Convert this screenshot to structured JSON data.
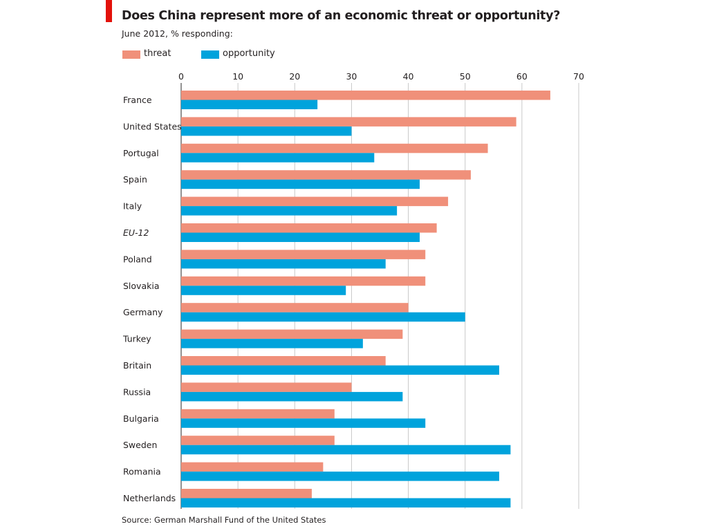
{
  "chart_data": {
    "type": "bar",
    "orientation": "horizontal",
    "title": "Does China represent more of an economic threat or opportunity?",
    "subtitle": "June 2012, % responding:",
    "source": "Source: German Marshall Fund of the United States",
    "categories": [
      "France",
      "United States",
      "Portugal",
      "Spain",
      "Italy",
      "EU-12",
      "Poland",
      "Slovakia",
      "Germany",
      "Turkey",
      "Britain",
      "Russia",
      "Bulgaria",
      "Sweden",
      "Romania",
      "Netherlands"
    ],
    "italic_categories": [
      "EU-12"
    ],
    "series": [
      {
        "name": "threat",
        "color": "#f0907a",
        "values": [
          65,
          59,
          54,
          51,
          47,
          45,
          43,
          43,
          40,
          39,
          36,
          30,
          27,
          27,
          25,
          23
        ]
      },
      {
        "name": "opportunity",
        "color": "#00a3dc",
        "values": [
          24,
          30,
          34,
          42,
          38,
          42,
          36,
          29,
          50,
          32,
          56,
          39,
          43,
          58,
          56,
          58
        ]
      }
    ],
    "xlim": [
      0,
      70
    ],
    "xticks": [
      "0",
      "10",
      "20",
      "30",
      "40",
      "50",
      "60",
      "70"
    ],
    "axis_position": "top",
    "grid": true,
    "legend_position": "top-left"
  },
  "colors": {
    "accent_red": "#e3120b",
    "gridline": "#c8c8c8"
  }
}
